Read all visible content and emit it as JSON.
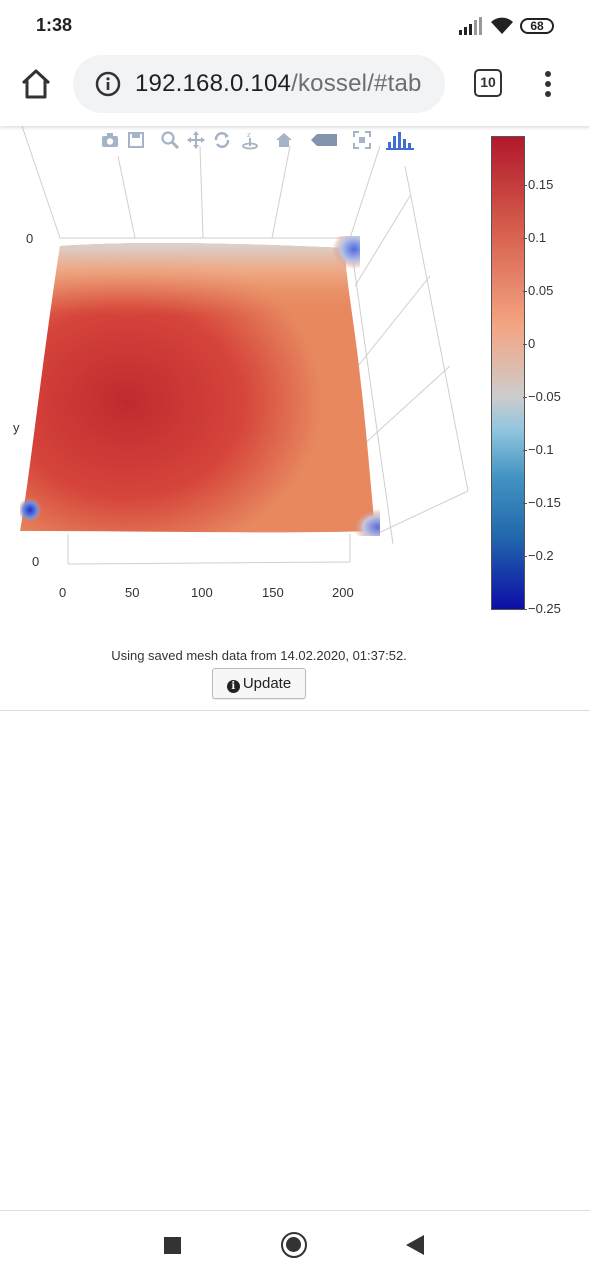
{
  "status_bar": {
    "time": "1:38",
    "battery": "68"
  },
  "browser": {
    "url_host": "192.168.0.104",
    "url_path": "/kossel/#tab",
    "tab_count": "10"
  },
  "plot": {
    "modebar_icons": [
      "camera-icon",
      "save-icon",
      "zoom-icon",
      "pan-icon",
      "orbit-rotation-icon",
      "turntable-rotation-icon",
      "reset-camera-icon",
      "hover-toggle-icon",
      "autoscale-icon",
      "plotly-logo-icon"
    ],
    "axis_y_label": "y",
    "z_tick_top": "0",
    "z_tick_bottom": "0",
    "x_ticks": [
      "0",
      "50",
      "100",
      "150",
      "200"
    ],
    "colorbar": {
      "ticks": [
        "0.15",
        "0.1",
        "0.05",
        "0",
        "−0.05",
        "−0.1",
        "−0.15",
        "−0.2",
        "−0.25"
      ],
      "colors": [
        "#b2182b",
        "#d6604d",
        "#f4a582",
        "#cccccc",
        "#92c5de",
        "#4393c3",
        "#2166ac",
        "#0d0da8"
      ]
    }
  },
  "message": {
    "text": "Using saved mesh data from 14.02.2020, 01:37:52.",
    "update_label": "Update"
  }
}
